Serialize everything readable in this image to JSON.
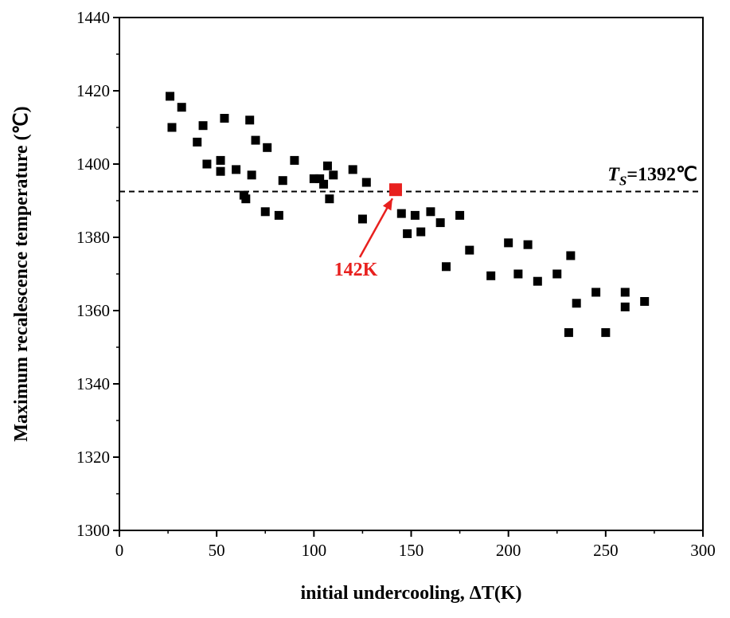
{
  "chart_data": {
    "type": "scatter",
    "xlabel": "initial undercooling, ΔT(K)",
    "ylabel": "Maximum recalescence temperature (℃)",
    "xlim": [
      0,
      300
    ],
    "ylim": [
      1300,
      1440
    ],
    "xticks": [
      0,
      50,
      100,
      150,
      200,
      250,
      300
    ],
    "yticks": [
      1300,
      1320,
      1340,
      1360,
      1380,
      1400,
      1420,
      1440
    ],
    "grid": false,
    "marker": "square",
    "marker_color": "#000000",
    "points": [
      [
        26,
        1418.5
      ],
      [
        27,
        1410
      ],
      [
        32,
        1415.5
      ],
      [
        40,
        1406
      ],
      [
        43,
        1410.5
      ],
      [
        45,
        1400
      ],
      [
        52,
        1398
      ],
      [
        52,
        1401
      ],
      [
        54,
        1412.5
      ],
      [
        60,
        1398.5
      ],
      [
        64,
        1391.5
      ],
      [
        65,
        1390.5
      ],
      [
        67,
        1412
      ],
      [
        68,
        1397
      ],
      [
        70,
        1406.5
      ],
      [
        75,
        1387
      ],
      [
        76,
        1404.5
      ],
      [
        82,
        1386
      ],
      [
        84,
        1395.5
      ],
      [
        90,
        1401
      ],
      [
        100,
        1396
      ],
      [
        103,
        1396
      ],
      [
        105,
        1394.5
      ],
      [
        107,
        1399.5
      ],
      [
        108,
        1390.5
      ],
      [
        110,
        1397
      ],
      [
        120,
        1398.5
      ],
      [
        125,
        1385
      ],
      [
        127,
        1395
      ],
      [
        145,
        1386.5
      ],
      [
        148,
        1381
      ],
      [
        152,
        1386
      ],
      [
        155,
        1381.5
      ],
      [
        160,
        1387
      ],
      [
        165,
        1384
      ],
      [
        168,
        1372
      ],
      [
        175,
        1386
      ],
      [
        180,
        1376.5
      ],
      [
        191,
        1369.5
      ],
      [
        200,
        1378.5
      ],
      [
        205,
        1370
      ],
      [
        210,
        1378
      ],
      [
        215,
        1368
      ],
      [
        225,
        1370
      ],
      [
        231,
        1354
      ],
      [
        232,
        1375
      ],
      [
        235,
        1362
      ],
      [
        245,
        1365
      ],
      [
        250,
        1354
      ],
      [
        260,
        1365
      ],
      [
        260,
        1361
      ],
      [
        270,
        1362.5
      ]
    ],
    "highlight": {
      "x": 142,
      "y": 1393,
      "color": "#e8201e",
      "label": "142K"
    },
    "reference_line": {
      "y": 1392.5,
      "style": "dashed",
      "label_main": "T",
      "label_sub": "S",
      "label_value": "=1392℃"
    }
  }
}
